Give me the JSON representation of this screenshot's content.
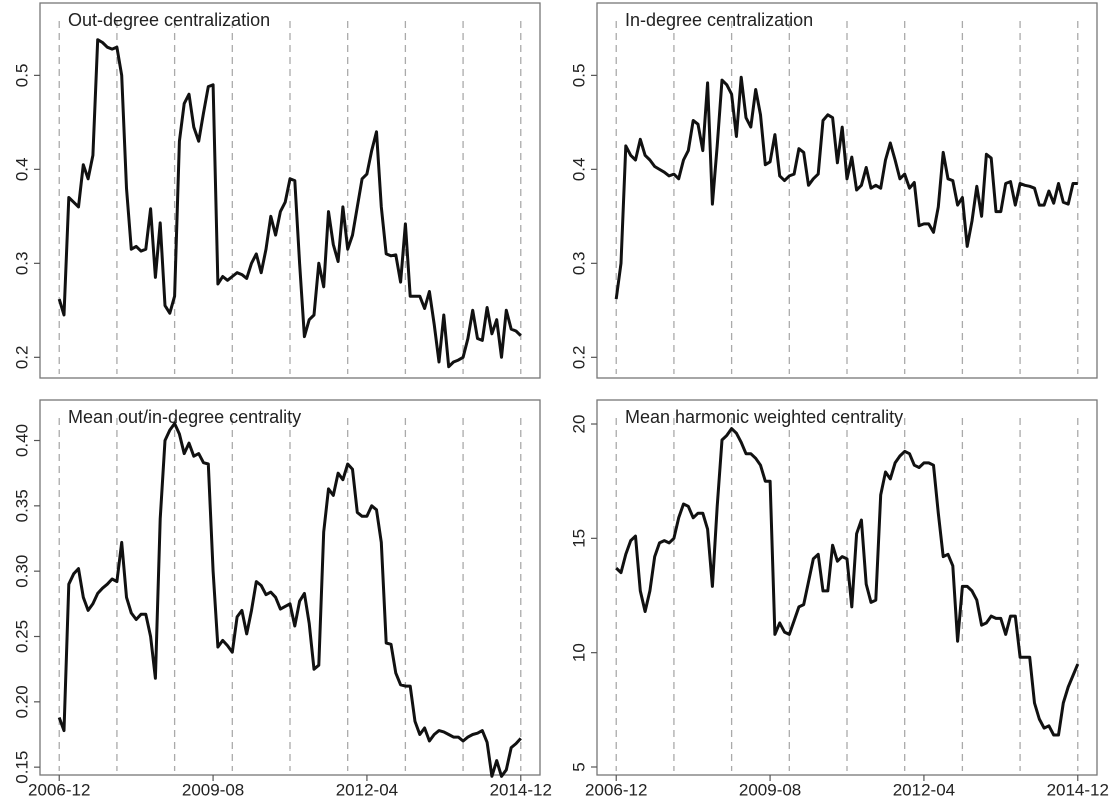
{
  "chart_data": [
    {
      "type": "line",
      "title": "Out-degree centralization",
      "color": "#111111",
      "grid": "dashed-vertical",
      "x": [
        "2006-12",
        "2007-01",
        "2007-02",
        "2007-03",
        "2007-04",
        "2007-05",
        "2007-06",
        "2007-07",
        "2007-08",
        "2007-09",
        "2007-10",
        "2007-11",
        "2007-12",
        "2008-01",
        "2008-02",
        "2008-03",
        "2008-04",
        "2008-05",
        "2008-06",
        "2008-07",
        "2008-08",
        "2008-09",
        "2008-10",
        "2008-11",
        "2008-12",
        "2009-01",
        "2009-02",
        "2009-03",
        "2009-04",
        "2009-05",
        "2009-06",
        "2009-07",
        "2009-08",
        "2009-09",
        "2009-10",
        "2009-11",
        "2009-12",
        "2010-01",
        "2010-02",
        "2010-03",
        "2010-04",
        "2010-05",
        "2010-06",
        "2010-07",
        "2010-08",
        "2010-09",
        "2010-10",
        "2010-11",
        "2010-12",
        "2011-01",
        "2011-02",
        "2011-03",
        "2011-04",
        "2011-05",
        "2011-06",
        "2011-07",
        "2011-08",
        "2011-09",
        "2011-10",
        "2011-11",
        "2011-12",
        "2012-01",
        "2012-02",
        "2012-03",
        "2012-04",
        "2012-05",
        "2012-06",
        "2012-07",
        "2012-08",
        "2012-09",
        "2012-10",
        "2012-11",
        "2012-12",
        "2013-01",
        "2013-02",
        "2013-03",
        "2013-04",
        "2013-05",
        "2013-06",
        "2013-07",
        "2013-08",
        "2013-09",
        "2013-10",
        "2013-11",
        "2013-12",
        "2014-01",
        "2014-02",
        "2014-03",
        "2014-04",
        "2014-05",
        "2014-06",
        "2014-07",
        "2014-08",
        "2014-09",
        "2014-10",
        "2014-11",
        "2014-12"
      ],
      "values": [
        0.262,
        0.245,
        0.37,
        0.365,
        0.36,
        0.405,
        0.39,
        0.415,
        0.538,
        0.535,
        0.53,
        0.528,
        0.53,
        0.5,
        0.38,
        0.315,
        0.318,
        0.313,
        0.315,
        0.358,
        0.285,
        0.343,
        0.255,
        0.247,
        0.265,
        0.43,
        0.47,
        0.48,
        0.445,
        0.43,
        0.46,
        0.488,
        0.49,
        0.278,
        0.286,
        0.282,
        0.286,
        0.29,
        0.288,
        0.284,
        0.3,
        0.31,
        0.29,
        0.315,
        0.35,
        0.33,
        0.355,
        0.365,
        0.39,
        0.388,
        0.3,
        0.222,
        0.24,
        0.245,
        0.3,
        0.275,
        0.355,
        0.32,
        0.302,
        0.36,
        0.315,
        0.33,
        0.36,
        0.39,
        0.395,
        0.42,
        0.44,
        0.36,
        0.31,
        0.308,
        0.309,
        0.28,
        0.342,
        0.265,
        0.265,
        0.265,
        0.252,
        0.27,
        0.235,
        0.195,
        0.245,
        0.19,
        0.195,
        0.197,
        0.2,
        0.22,
        0.25,
        0.22,
        0.218,
        0.253,
        0.225,
        0.24,
        0.2,
        0.25,
        0.23,
        0.228,
        0.223
      ],
      "xlim": [
        "2006-08",
        "2015-04"
      ],
      "vlines": [
        "2006-12",
        "2007-12",
        "2008-12",
        "2009-12",
        "2010-12",
        "2011-12",
        "2012-12",
        "2013-12",
        "2014-12"
      ],
      "ylim": [
        0.178,
        0.577
      ],
      "yticks": [
        0.2,
        0.3,
        0.4,
        0.5
      ]
    },
    {
      "type": "line",
      "title": "In-degree centralization",
      "color": "#111111",
      "grid": "dashed-vertical",
      "x": [
        "2006-12",
        "2007-01",
        "2007-02",
        "2007-03",
        "2007-04",
        "2007-05",
        "2007-06",
        "2007-07",
        "2007-08",
        "2007-09",
        "2007-10",
        "2007-11",
        "2007-12",
        "2008-01",
        "2008-02",
        "2008-03",
        "2008-04",
        "2008-05",
        "2008-06",
        "2008-07",
        "2008-08",
        "2008-09",
        "2008-10",
        "2008-11",
        "2008-12",
        "2009-01",
        "2009-02",
        "2009-03",
        "2009-04",
        "2009-05",
        "2009-06",
        "2009-07",
        "2009-08",
        "2009-09",
        "2009-10",
        "2009-11",
        "2009-12",
        "2010-01",
        "2010-02",
        "2010-03",
        "2010-04",
        "2010-05",
        "2010-06",
        "2010-07",
        "2010-08",
        "2010-09",
        "2010-10",
        "2010-11",
        "2010-12",
        "2011-01",
        "2011-02",
        "2011-03",
        "2011-04",
        "2011-05",
        "2011-06",
        "2011-07",
        "2011-08",
        "2011-09",
        "2011-10",
        "2011-11",
        "2011-12",
        "2012-01",
        "2012-02",
        "2012-03",
        "2012-04",
        "2012-05",
        "2012-06",
        "2012-07",
        "2012-08",
        "2012-09",
        "2012-10",
        "2012-11",
        "2012-12",
        "2013-01",
        "2013-02",
        "2013-03",
        "2013-04",
        "2013-05",
        "2013-06",
        "2013-07",
        "2013-08",
        "2013-09",
        "2013-10",
        "2013-11",
        "2013-12",
        "2014-01",
        "2014-02",
        "2014-03",
        "2014-04",
        "2014-05",
        "2014-06",
        "2014-07",
        "2014-08",
        "2014-09",
        "2014-10",
        "2014-11",
        "2014-12"
      ],
      "values": [
        0.262,
        0.3,
        0.425,
        0.415,
        0.41,
        0.432,
        0.415,
        0.41,
        0.403,
        0.4,
        0.397,
        0.393,
        0.395,
        0.39,
        0.41,
        0.42,
        0.452,
        0.448,
        0.42,
        0.492,
        0.363,
        0.425,
        0.495,
        0.49,
        0.48,
        0.435,
        0.498,
        0.455,
        0.445,
        0.485,
        0.458,
        0.405,
        0.408,
        0.437,
        0.393,
        0.388,
        0.393,
        0.395,
        0.422,
        0.418,
        0.383,
        0.39,
        0.395,
        0.452,
        0.458,
        0.455,
        0.407,
        0.445,
        0.39,
        0.413,
        0.378,
        0.383,
        0.402,
        0.38,
        0.383,
        0.38,
        0.41,
        0.428,
        0.41,
        0.39,
        0.395,
        0.38,
        0.386,
        0.34,
        0.342,
        0.342,
        0.333,
        0.36,
        0.418,
        0.39,
        0.388,
        0.362,
        0.37,
        0.318,
        0.345,
        0.382,
        0.35,
        0.416,
        0.412,
        0.355,
        0.355,
        0.385,
        0.387,
        0.362,
        0.385,
        0.383,
        0.382,
        0.38,
        0.362,
        0.362,
        0.377,
        0.364,
        0.385,
        0.365,
        0.363,
        0.385,
        0.385
      ],
      "xlim": [
        "2006-08",
        "2015-04"
      ],
      "vlines": [
        "2006-12",
        "2007-12",
        "2008-12",
        "2009-12",
        "2010-12",
        "2011-12",
        "2012-12",
        "2013-12",
        "2014-12"
      ],
      "ylim": [
        0.178,
        0.577
      ],
      "yticks": [
        0.2,
        0.3,
        0.4,
        0.5
      ]
    },
    {
      "type": "line",
      "title": "Mean out/in-degree centrality",
      "color": "#111111",
      "grid": "dashed-vertical",
      "x": [
        "2006-12",
        "2007-01",
        "2007-02",
        "2007-03",
        "2007-04",
        "2007-05",
        "2007-06",
        "2007-07",
        "2007-08",
        "2007-09",
        "2007-10",
        "2007-11",
        "2007-12",
        "2008-01",
        "2008-02",
        "2008-03",
        "2008-04",
        "2008-05",
        "2008-06",
        "2008-07",
        "2008-08",
        "2008-09",
        "2008-10",
        "2008-11",
        "2008-12",
        "2009-01",
        "2009-02",
        "2009-03",
        "2009-04",
        "2009-05",
        "2009-06",
        "2009-07",
        "2009-08",
        "2009-09",
        "2009-10",
        "2009-11",
        "2009-12",
        "2010-01",
        "2010-02",
        "2010-03",
        "2010-04",
        "2010-05",
        "2010-06",
        "2010-07",
        "2010-08",
        "2010-09",
        "2010-10",
        "2010-11",
        "2010-12",
        "2011-01",
        "2011-02",
        "2011-03",
        "2011-04",
        "2011-05",
        "2011-06",
        "2011-07",
        "2011-08",
        "2011-09",
        "2011-10",
        "2011-11",
        "2011-12",
        "2012-01",
        "2012-02",
        "2012-03",
        "2012-04",
        "2012-05",
        "2012-06",
        "2012-07",
        "2012-08",
        "2012-09",
        "2012-10",
        "2012-11",
        "2012-12",
        "2013-01",
        "2013-02",
        "2013-03",
        "2013-04",
        "2013-05",
        "2013-06",
        "2013-07",
        "2013-08",
        "2013-09",
        "2013-10",
        "2013-11",
        "2013-12",
        "2014-01",
        "2014-02",
        "2014-03",
        "2014-04",
        "2014-05",
        "2014-06",
        "2014-07",
        "2014-08",
        "2014-09",
        "2014-10",
        "2014-11",
        "2014-12"
      ],
      "values": [
        0.188,
        0.178,
        0.29,
        0.298,
        0.302,
        0.28,
        0.27,
        0.275,
        0.283,
        0.287,
        0.29,
        0.294,
        0.292,
        0.322,
        0.28,
        0.268,
        0.263,
        0.267,
        0.267,
        0.25,
        0.218,
        0.34,
        0.4,
        0.408,
        0.413,
        0.405,
        0.39,
        0.398,
        0.388,
        0.39,
        0.383,
        0.382,
        0.3,
        0.242,
        0.247,
        0.243,
        0.238,
        0.265,
        0.27,
        0.252,
        0.27,
        0.292,
        0.289,
        0.282,
        0.284,
        0.28,
        0.271,
        0.273,
        0.275,
        0.258,
        0.277,
        0.283,
        0.26,
        0.225,
        0.228,
        0.33,
        0.363,
        0.358,
        0.375,
        0.37,
        0.382,
        0.378,
        0.345,
        0.342,
        0.342,
        0.35,
        0.347,
        0.322,
        0.245,
        0.244,
        0.222,
        0.213,
        0.212,
        0.212,
        0.185,
        0.175,
        0.18,
        0.17,
        0.175,
        0.178,
        0.177,
        0.175,
        0.173,
        0.173,
        0.17,
        0.173,
        0.175,
        0.176,
        0.178,
        0.169,
        0.143,
        0.155,
        0.143,
        0.148,
        0.165,
        0.168,
        0.172
      ],
      "xlim": [
        "2006-08",
        "2015-04"
      ],
      "vlines": [
        "2006-12",
        "2007-12",
        "2008-12",
        "2009-12",
        "2010-12",
        "2011-12",
        "2012-12",
        "2013-12",
        "2014-12"
      ],
      "xticks": [
        "2006-12",
        "2009-08",
        "2012-04",
        "2014-12"
      ],
      "ylim": [
        0.144,
        0.431
      ],
      "yticks": [
        {
          "value": 0.15,
          "label": "0.15"
        },
        {
          "value": 0.2,
          "label": "0.20"
        },
        {
          "value": 0.25,
          "label": "0.25"
        },
        {
          "value": 0.3,
          "label": "0.30"
        },
        {
          "value": 0.35,
          "label": "0.35"
        },
        {
          "value": 0.4,
          "label": "0.40"
        }
      ]
    },
    {
      "type": "line",
      "title": "Mean harmonic weighted centrality",
      "color": "#111111",
      "grid": "dashed-vertical",
      "x": [
        "2006-12",
        "2007-01",
        "2007-02",
        "2007-03",
        "2007-04",
        "2007-05",
        "2007-06",
        "2007-07",
        "2007-08",
        "2007-09",
        "2007-10",
        "2007-11",
        "2007-12",
        "2008-01",
        "2008-02",
        "2008-03",
        "2008-04",
        "2008-05",
        "2008-06",
        "2008-07",
        "2008-08",
        "2008-09",
        "2008-10",
        "2008-11",
        "2008-12",
        "2009-01",
        "2009-02",
        "2009-03",
        "2009-04",
        "2009-05",
        "2009-06",
        "2009-07",
        "2009-08",
        "2009-09",
        "2009-10",
        "2009-11",
        "2009-12",
        "2010-01",
        "2010-02",
        "2010-03",
        "2010-04",
        "2010-05",
        "2010-06",
        "2010-07",
        "2010-08",
        "2010-09",
        "2010-10",
        "2010-11",
        "2010-12",
        "2011-01",
        "2011-02",
        "2011-03",
        "2011-04",
        "2011-05",
        "2011-06",
        "2011-07",
        "2011-08",
        "2011-09",
        "2011-10",
        "2011-11",
        "2011-12",
        "2012-01",
        "2012-02",
        "2012-03",
        "2012-04",
        "2012-05",
        "2012-06",
        "2012-07",
        "2012-08",
        "2012-09",
        "2012-10",
        "2012-11",
        "2012-12",
        "2013-01",
        "2013-02",
        "2013-03",
        "2013-04",
        "2013-05",
        "2013-06",
        "2013-07",
        "2013-08",
        "2013-09",
        "2013-10",
        "2013-11",
        "2013-12",
        "2014-01",
        "2014-02",
        "2014-03",
        "2014-04",
        "2014-05",
        "2014-06",
        "2014-07",
        "2014-08",
        "2014-09",
        "2014-10",
        "2014-11",
        "2014-12"
      ],
      "values": [
        13.7,
        13.5,
        14.3,
        14.9,
        15.1,
        12.7,
        11.8,
        12.7,
        14.2,
        14.8,
        14.9,
        14.8,
        15.0,
        15.9,
        16.5,
        16.4,
        15.9,
        16.1,
        16.1,
        15.4,
        12.9,
        16.4,
        19.3,
        19.5,
        19.8,
        19.6,
        19.2,
        18.7,
        18.7,
        18.5,
        18.2,
        17.5,
        17.5,
        10.8,
        11.3,
        10.9,
        10.8,
        11.4,
        12.0,
        12.1,
        13.1,
        14.1,
        14.3,
        12.7,
        12.7,
        14.7,
        14.0,
        14.2,
        14.1,
        12.0,
        15.2,
        15.8,
        13.0,
        12.2,
        12.3,
        16.9,
        17.9,
        17.6,
        18.3,
        18.6,
        18.8,
        18.7,
        18.2,
        18.1,
        18.3,
        18.3,
        18.2,
        16.1,
        14.2,
        14.3,
        13.8,
        10.5,
        12.9,
        12.9,
        12.7,
        12.3,
        11.2,
        11.3,
        11.6,
        11.5,
        11.5,
        10.8,
        11.6,
        11.6,
        9.8,
        9.8,
        9.8,
        7.8,
        7.1,
        6.7,
        6.8,
        6.4,
        6.4,
        7.8,
        8.5,
        9.0,
        9.5
      ],
      "xlim": [
        "2006-08",
        "2015-04"
      ],
      "vlines": [
        "2006-12",
        "2007-12",
        "2008-12",
        "2009-12",
        "2010-12",
        "2011-12",
        "2012-12",
        "2013-12",
        "2014-12"
      ],
      "xticks": [
        "2006-12",
        "2009-08",
        "2012-04",
        "2014-12"
      ],
      "ylim": [
        4.65,
        21.05
      ],
      "yticks": [
        5,
        10,
        15,
        20
      ]
    }
  ]
}
